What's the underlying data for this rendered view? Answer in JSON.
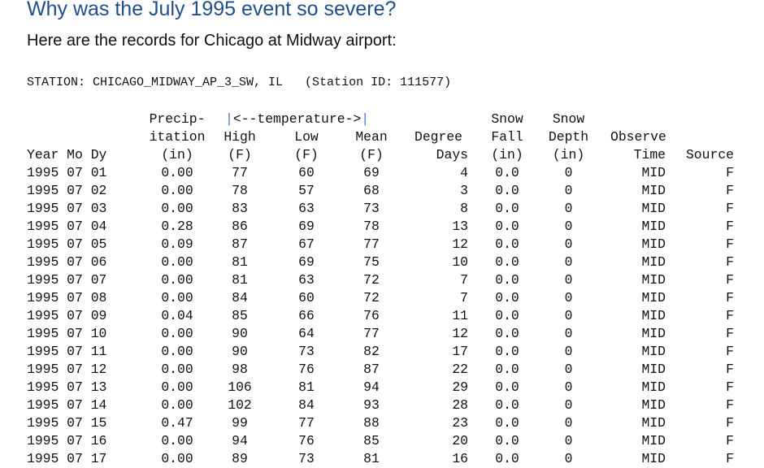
{
  "heading": "Why was the July 1995 event so severe?",
  "intro": "Here are the records for Chicago at Midway airport:",
  "station_line": "STATION: CHICAGO_MIDWAY_AP_3_SW, IL   (Station ID: 111577)",
  "header": {
    "row1": {
      "precip": "Precip-",
      "temp_left_bar": "|",
      "temp_label": "<--temperature->",
      "temp_right_bar": "|",
      "snow_fall": "Snow",
      "snow_depth": "Snow"
    },
    "row2": {
      "precip": "itation",
      "high": "High",
      "low": "Low",
      "mean": "Mean",
      "degree": "Degree",
      "snow_fall": "Fall",
      "snow_depth": "Depth",
      "observe": "Observe"
    },
    "row3": {
      "date": "Year Mo Dy",
      "precip": "(in)",
      "high": "(F)",
      "low": "(F)",
      "mean": "(F)",
      "degree": "Days",
      "snow_fall": "(in)",
      "snow_depth": "(in)",
      "observe": "Time",
      "source": "Source"
    }
  },
  "records": [
    {
      "date": "1995 07 01",
      "precip": "0.00",
      "high": "77",
      "low": "60",
      "mean": "69",
      "degree_days": "4",
      "snow_fall": "0.0",
      "snow_depth": "0",
      "observe_time": "MID",
      "source": "F"
    },
    {
      "date": "1995 07 02",
      "precip": "0.00",
      "high": "78",
      "low": "57",
      "mean": "68",
      "degree_days": "3",
      "snow_fall": "0.0",
      "snow_depth": "0",
      "observe_time": "MID",
      "source": "F"
    },
    {
      "date": "1995 07 03",
      "precip": "0.00",
      "high": "83",
      "low": "63",
      "mean": "73",
      "degree_days": "8",
      "snow_fall": "0.0",
      "snow_depth": "0",
      "observe_time": "MID",
      "source": "F"
    },
    {
      "date": "1995 07 04",
      "precip": "0.28",
      "high": "86",
      "low": "69",
      "mean": "78",
      "degree_days": "13",
      "snow_fall": "0.0",
      "snow_depth": "0",
      "observe_time": "MID",
      "source": "F"
    },
    {
      "date": "1995 07 05",
      "precip": "0.09",
      "high": "87",
      "low": "67",
      "mean": "77",
      "degree_days": "12",
      "snow_fall": "0.0",
      "snow_depth": "0",
      "observe_time": "MID",
      "source": "F"
    },
    {
      "date": "1995 07 06",
      "precip": "0.00",
      "high": "81",
      "low": "69",
      "mean": "75",
      "degree_days": "10",
      "snow_fall": "0.0",
      "snow_depth": "0",
      "observe_time": "MID",
      "source": "F"
    },
    {
      "date": "1995 07 07",
      "precip": "0.00",
      "high": "81",
      "low": "63",
      "mean": "72",
      "degree_days": "7",
      "snow_fall": "0.0",
      "snow_depth": "0",
      "observe_time": "MID",
      "source": "F"
    },
    {
      "date": "1995 07 08",
      "precip": "0.00",
      "high": "84",
      "low": "60",
      "mean": "72",
      "degree_days": "7",
      "snow_fall": "0.0",
      "snow_depth": "0",
      "observe_time": "MID",
      "source": "F"
    },
    {
      "date": "1995 07 09",
      "precip": "0.04",
      "high": "85",
      "low": "66",
      "mean": "76",
      "degree_days": "11",
      "snow_fall": "0.0",
      "snow_depth": "0",
      "observe_time": "MID",
      "source": "F"
    },
    {
      "date": "1995 07 10",
      "precip": "0.00",
      "high": "90",
      "low": "64",
      "mean": "77",
      "degree_days": "12",
      "snow_fall": "0.0",
      "snow_depth": "0",
      "observe_time": "MID",
      "source": "F"
    },
    {
      "date": "1995 07 11",
      "precip": "0.00",
      "high": "90",
      "low": "73",
      "mean": "82",
      "degree_days": "17",
      "snow_fall": "0.0",
      "snow_depth": "0",
      "observe_time": "MID",
      "source": "F"
    },
    {
      "date": "1995 07 12",
      "precip": "0.00",
      "high": "98",
      "low": "76",
      "mean": "87",
      "degree_days": "22",
      "snow_fall": "0.0",
      "snow_depth": "0",
      "observe_time": "MID",
      "source": "F"
    },
    {
      "date": "1995 07 13",
      "precip": "0.00",
      "high": "106",
      "low": "81",
      "mean": "94",
      "degree_days": "29",
      "snow_fall": "0.0",
      "snow_depth": "0",
      "observe_time": "MID",
      "source": "F"
    },
    {
      "date": "1995 07 14",
      "precip": "0.00",
      "high": "102",
      "low": "84",
      "mean": "93",
      "degree_days": "28",
      "snow_fall": "0.0",
      "snow_depth": "0",
      "observe_time": "MID",
      "source": "F"
    },
    {
      "date": "1995 07 15",
      "precip": "0.47",
      "high": "99",
      "low": "77",
      "mean": "88",
      "degree_days": "23",
      "snow_fall": "0.0",
      "snow_depth": "0",
      "observe_time": "MID",
      "source": "F"
    },
    {
      "date": "1995 07 16",
      "precip": "0.00",
      "high": "94",
      "low": "76",
      "mean": "85",
      "degree_days": "20",
      "snow_fall": "0.0",
      "snow_depth": "0",
      "observe_time": "MID",
      "source": "F"
    },
    {
      "date": "1995 07 17",
      "precip": "0.00",
      "high": "89",
      "low": "73",
      "mean": "81",
      "degree_days": "16",
      "snow_fall": "0.0",
      "snow_depth": "0",
      "observe_time": "MID",
      "source": "F"
    }
  ]
}
